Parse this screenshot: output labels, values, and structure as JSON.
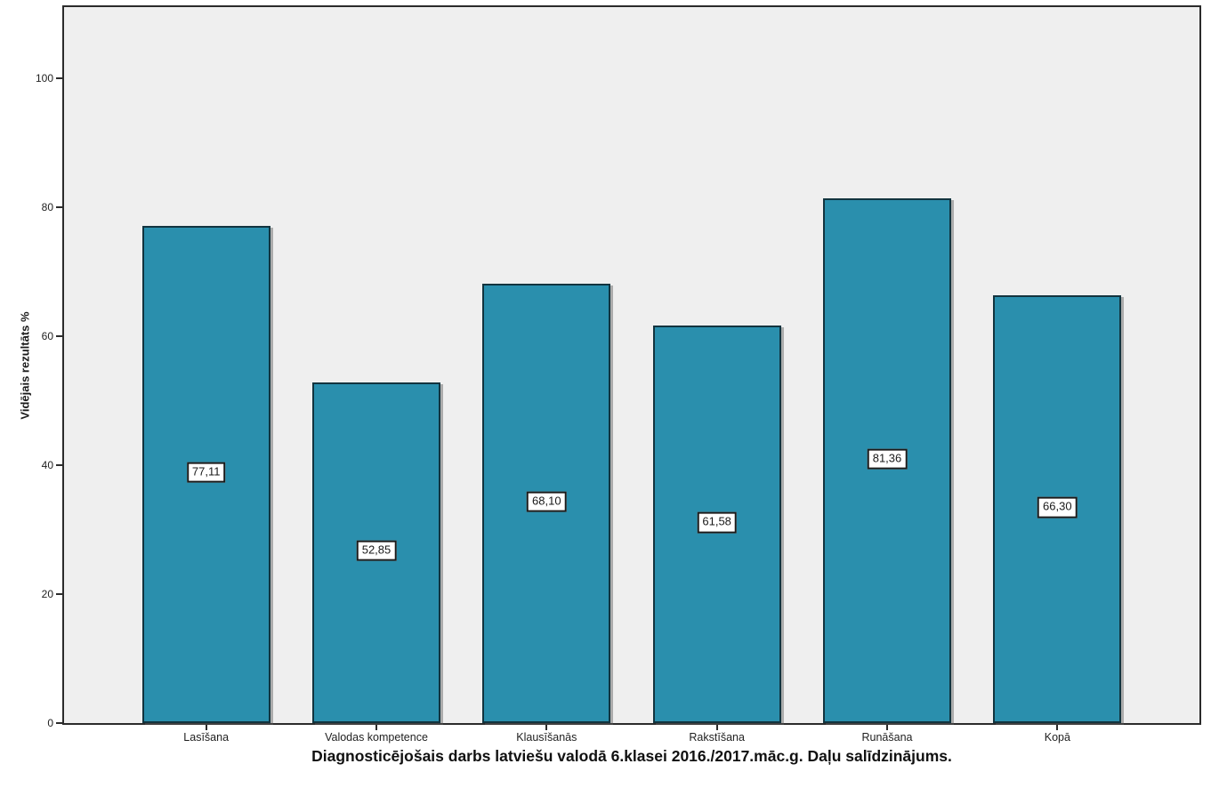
{
  "chart_data": {
    "type": "bar",
    "title": "Diagnosticējošais darbs latviešu valodā 6.klasei 2016./2017.māc.g. Daļu salīdzinājums.",
    "title_position": "bottom",
    "xlabel": "",
    "ylabel": "Vidējais rezultāts %",
    "categories": [
      "Lasīšana",
      "Valodas kompetence",
      "Klausīšanās",
      "Rakstīšana",
      "Runāšana",
      "Kopā"
    ],
    "values": [
      77.11,
      52.85,
      68.1,
      61.58,
      81.36,
      66.3
    ],
    "value_labels": [
      "77,11",
      "52,85",
      "68,10",
      "61,58",
      "81,36",
      "66,30"
    ],
    "value_label_placement": "middle-of-bar",
    "yticks": [
      0,
      20,
      40,
      60,
      80,
      100
    ],
    "ylim": [
      0,
      111
    ],
    "grid": false,
    "legend": "none",
    "colors": {
      "bar_fill": "#2a8fad",
      "bar_border": "#12343f",
      "plot_background": "#efefef",
      "page_background": "#ffffff",
      "axis_frame": "#2b2b2b",
      "value_box_background": "#ffffff",
      "value_box_border": "#1a1a1a",
      "text": "#1a1a1a"
    }
  }
}
